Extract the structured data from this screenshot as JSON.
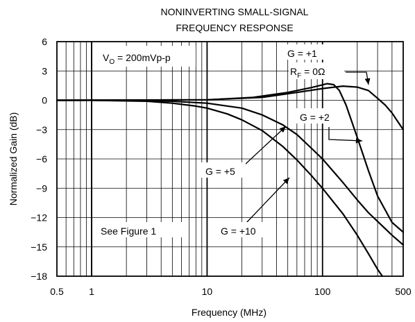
{
  "chart_data": {
    "type": "line",
    "title": [
      "NONINVERTING SMALL-SIGNAL",
      "FREQUENCY RESPONSE"
    ],
    "xlabel": "Frequency (MHz)",
    "ylabel": "Normalized Gain (dB)",
    "xscale": "log",
    "xlim": [
      0.5,
      500
    ],
    "ylim": [
      -18,
      6
    ],
    "grid": true,
    "x_ticks": [
      {
        "value": 0.5,
        "label": "0.5"
      },
      {
        "value": 1,
        "label": "1"
      },
      {
        "value": 10,
        "label": "10"
      },
      {
        "value": 100,
        "label": "100"
      },
      {
        "value": 500,
        "label": "500"
      }
    ],
    "y_ticks": [
      {
        "value": 6,
        "label": "6"
      },
      {
        "value": 3,
        "label": "3"
      },
      {
        "value": 0,
        "label": "0"
      },
      {
        "value": -3,
        "label": "−3"
      },
      {
        "value": -6,
        "label": "−6"
      },
      {
        "value": -9,
        "label": "−9"
      },
      {
        "value": -12,
        "label": "−12"
      },
      {
        "value": -15,
        "label": "−15"
      },
      {
        "value": -18,
        "label": "−18"
      }
    ],
    "series": [
      {
        "name": "G = +1, RF = 0Ω",
        "x": [
          0.5,
          10,
          30,
          60,
          100,
          150,
          200,
          250,
          300,
          350,
          400,
          450,
          500
        ],
        "y": [
          0,
          0.05,
          0.3,
          0.8,
          1.2,
          1.45,
          1.35,
          1.0,
          0.2,
          -0.5,
          -1.3,
          -2.2,
          -3.0
        ]
      },
      {
        "name": "G = +2",
        "x": [
          0.5,
          10,
          25,
          50,
          80,
          110,
          125,
          140,
          160,
          200,
          250,
          300,
          400,
          500
        ],
        "y": [
          0,
          0.05,
          0.3,
          0.8,
          1.3,
          1.7,
          1.6,
          1.0,
          -0.5,
          -3.8,
          -7.2,
          -9.8,
          -12.5,
          -13.5
        ]
      },
      {
        "name": "G = +5",
        "x": [
          0.5,
          1,
          3,
          5,
          10,
          20,
          30,
          45,
          60,
          80,
          100,
          150,
          200,
          250,
          300,
          400,
          500
        ],
        "y": [
          0,
          0,
          -0.05,
          -0.1,
          -0.3,
          -0.8,
          -1.5,
          -2.5,
          -3.5,
          -4.9,
          -6.0,
          -8.4,
          -10.2,
          -11.5,
          -12.4,
          -13.8,
          -14.8
        ]
      },
      {
        "name": "G = +10",
        "x": [
          0.5,
          1,
          3,
          5,
          8,
          10,
          15,
          20,
          30,
          45,
          60,
          80,
          100,
          150,
          200,
          250,
          300,
          330
        ],
        "y": [
          0,
          0,
          -0.1,
          -0.3,
          -0.6,
          -0.8,
          -1.4,
          -2.0,
          -3.1,
          -4.7,
          -6.1,
          -7.7,
          -9.0,
          -11.6,
          -13.8,
          -15.7,
          -17.3,
          -18.0
        ]
      }
    ],
    "annotations": {
      "vo": {
        "main": "V",
        "sub": "O",
        "rest": " = 200mVp-p"
      },
      "g1": "G = +1",
      "rf": {
        "main": "R",
        "sub": "F",
        "rest": " = 0Ω"
      },
      "g2": "G = +2",
      "g5": "G = +5",
      "g10": "G = +10",
      "fig": "See Figure 1"
    }
  }
}
